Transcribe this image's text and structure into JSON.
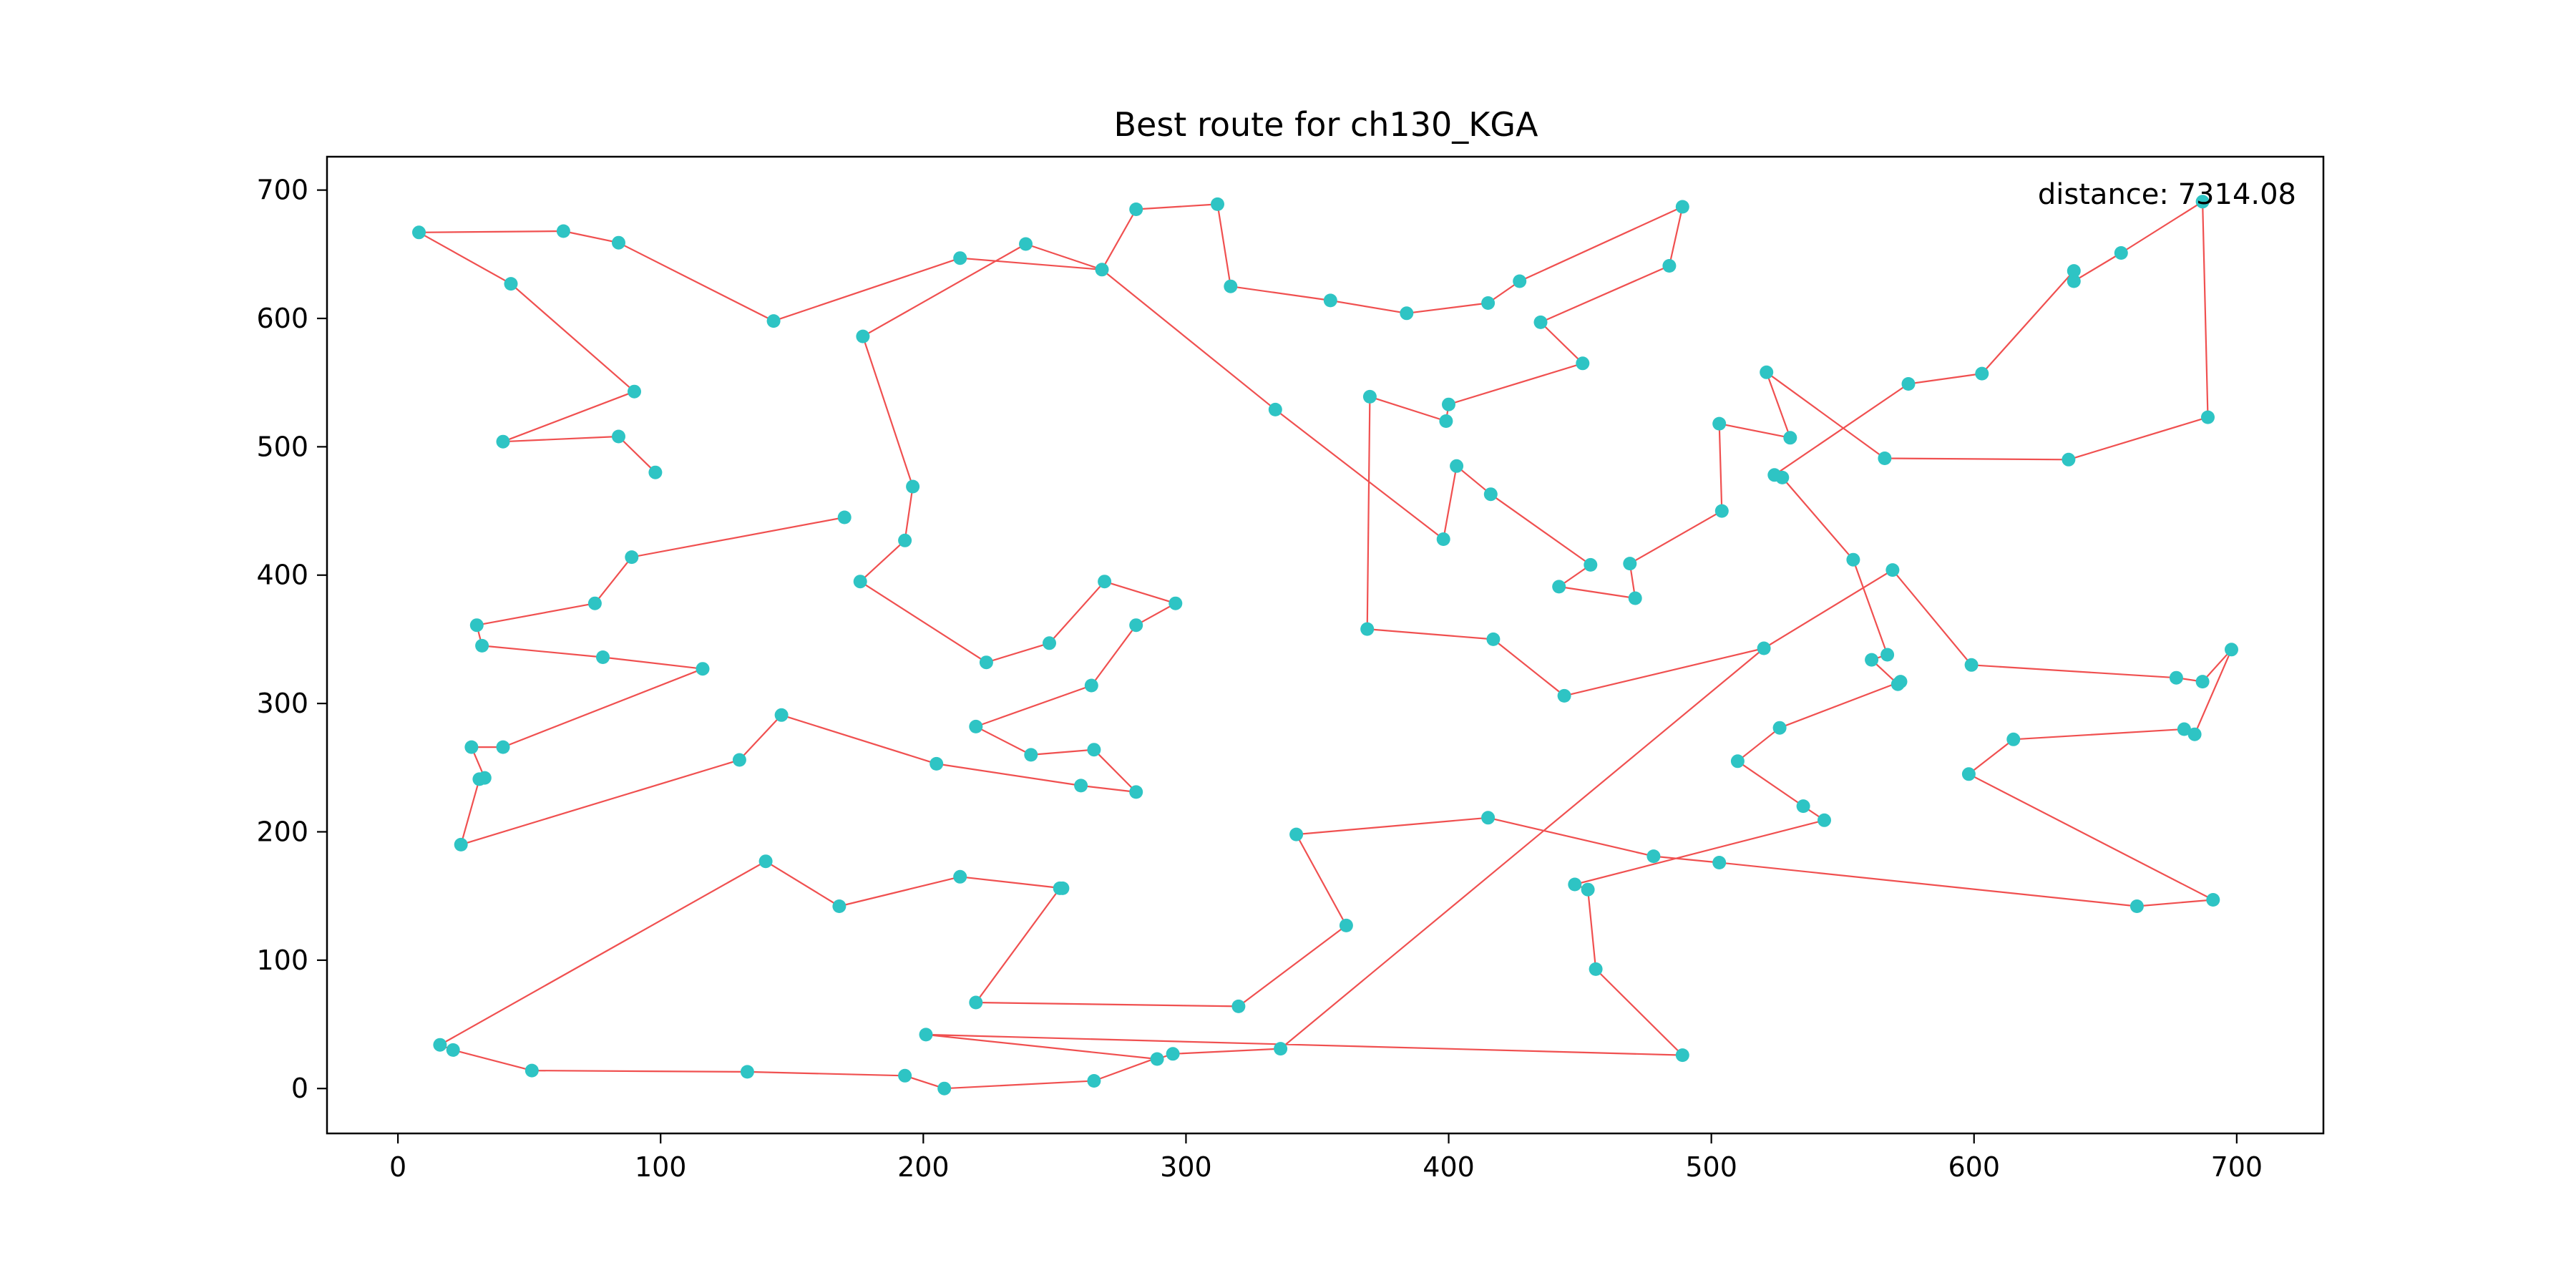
{
  "chart_data": {
    "type": "scatter",
    "title": "Best route for ch130_KGA",
    "xlabel": "",
    "ylabel": "",
    "xlim": [
      -27,
      733
    ],
    "ylim": [
      -35,
      726
    ],
    "x_ticks": [
      0,
      100,
      200,
      300,
      400,
      500,
      600,
      700
    ],
    "y_ticks": [
      0,
      100,
      200,
      300,
      400,
      500,
      600,
      700
    ],
    "grid": false,
    "annotation": "distance: 7314.08",
    "colors": {
      "points": "#2ec4c4",
      "route": "#f05050",
      "axes": "#000000"
    },
    "route": [
      [
        8,
        667
      ],
      [
        63,
        668
      ],
      [
        84,
        659
      ],
      [
        143,
        598
      ],
      [
        214,
        647
      ],
      [
        268,
        638
      ],
      [
        334,
        529
      ],
      [
        398,
        428
      ],
      [
        403,
        485
      ],
      [
        416,
        463
      ],
      [
        454,
        408
      ],
      [
        442,
        391
      ],
      [
        471,
        382
      ],
      [
        469,
        409
      ],
      [
        504,
        450
      ],
      [
        503,
        518
      ],
      [
        530,
        507
      ],
      [
        521,
        558
      ],
      [
        566,
        491
      ],
      [
        636,
        490
      ],
      [
        689,
        523
      ],
      [
        687,
        691
      ],
      [
        656,
        651
      ],
      [
        638,
        629
      ],
      [
        638,
        637
      ],
      [
        603,
        557
      ],
      [
        575,
        549
      ],
      [
        524,
        478
      ],
      [
        527,
        476
      ],
      [
        554,
        412
      ],
      [
        567,
        338
      ],
      [
        561,
        334
      ],
      [
        571,
        315
      ],
      [
        572,
        317
      ],
      [
        526,
        281
      ],
      [
        510,
        255
      ],
      [
        535,
        220
      ],
      [
        543,
        209
      ],
      [
        448,
        159
      ],
      [
        453,
        155
      ],
      [
        456,
        93
      ],
      [
        489,
        26
      ],
      [
        201,
        42
      ],
      [
        289,
        23
      ],
      [
        295,
        27
      ],
      [
        336,
        31
      ],
      [
        520,
        343
      ],
      [
        569,
        404
      ],
      [
        599,
        330
      ],
      [
        677,
        320
      ],
      [
        687,
        317
      ],
      [
        698,
        342
      ],
      [
        684,
        276
      ],
      [
        680,
        280
      ],
      [
        615,
        272
      ],
      [
        598,
        245
      ],
      [
        691,
        147
      ],
      [
        662,
        142
      ],
      [
        503,
        176
      ],
      [
        478,
        181
      ],
      [
        415,
        211
      ],
      [
        342,
        198
      ],
      [
        361,
        127
      ],
      [
        320,
        64
      ],
      [
        220,
        67
      ],
      [
        252,
        156
      ],
      [
        253,
        156
      ],
      [
        214,
        165
      ],
      [
        168,
        142
      ],
      [
        140,
        177
      ],
      [
        16,
        34
      ],
      [
        21,
        30
      ],
      [
        51,
        14
      ],
      [
        133,
        13
      ],
      [
        193,
        10
      ],
      [
        208,
        0
      ],
      [
        265,
        6
      ],
      [
        289,
        24
      ],
      [
        201,
        43
      ],
      [
        208,
        0
      ],
      [
        265,
        6
      ],
      [
        281,
        231
      ],
      [
        265,
        264
      ],
      [
        241,
        260
      ],
      [
        220,
        282
      ],
      [
        264,
        314
      ],
      [
        281,
        361
      ],
      [
        296,
        378
      ],
      [
        269,
        395
      ],
      [
        248,
        347
      ],
      [
        224,
        332
      ],
      [
        176,
        395
      ],
      [
        193,
        427
      ],
      [
        196,
        469
      ],
      [
        177,
        586
      ],
      [
        239,
        658
      ],
      [
        281,
        685
      ],
      [
        312,
        689
      ],
      [
        317,
        625
      ],
      [
        355,
        614
      ],
      [
        384,
        604
      ],
      [
        415,
        612
      ],
      [
        427,
        629
      ],
      [
        489,
        687
      ],
      [
        484,
        641
      ],
      [
        435,
        597
      ],
      [
        451,
        565
      ],
      [
        400,
        533
      ],
      [
        399,
        520
      ],
      [
        370,
        539
      ],
      [
        369,
        358
      ],
      [
        417,
        350
      ],
      [
        444,
        306
      ],
      [
        520,
        343
      ]
    ],
    "route_display": [
      [
        8,
        667
      ],
      [
        63,
        668
      ],
      [
        84,
        659
      ],
      [
        143,
        598
      ],
      [
        214,
        647
      ],
      [
        268,
        638
      ],
      [
        334,
        529
      ],
      [
        398,
        428
      ],
      [
        403,
        485
      ],
      [
        416,
        463
      ],
      [
        454,
        408
      ],
      [
        442,
        391
      ],
      [
        471,
        382
      ],
      [
        469,
        409
      ],
      [
        504,
        450
      ],
      [
        503,
        518
      ],
      [
        530,
        507
      ],
      [
        521,
        558
      ],
      [
        566,
        491
      ],
      [
        636,
        490
      ],
      [
        689,
        523
      ],
      [
        687,
        691
      ],
      [
        656,
        651
      ],
      [
        638,
        629
      ],
      [
        638,
        637
      ],
      [
        603,
        557
      ],
      [
        575,
        549
      ],
      [
        524,
        478
      ],
      [
        527,
        476
      ],
      [
        554,
        412
      ],
      [
        567,
        338
      ],
      [
        561,
        334
      ],
      [
        571,
        315
      ],
      [
        572,
        317
      ],
      [
        526,
        281
      ],
      [
        510,
        255
      ],
      [
        535,
        220
      ],
      [
        543,
        209
      ],
      [
        448,
        159
      ],
      [
        453,
        155
      ],
      [
        456,
        93
      ],
      [
        489,
        26
      ],
      [
        201,
        42
      ],
      [
        289,
        23
      ],
      [
        295,
        27
      ],
      [
        336,
        31
      ],
      [
        520,
        343
      ],
      [
        569,
        404
      ],
      [
        599,
        330
      ],
      [
        677,
        320
      ],
      [
        687,
        317
      ],
      [
        698,
        342
      ],
      [
        684,
        276
      ],
      [
        680,
        280
      ],
      [
        615,
        272
      ],
      [
        598,
        245
      ],
      [
        691,
        147
      ],
      [
        662,
        142
      ],
      [
        503,
        176
      ],
      [
        478,
        181
      ],
      [
        415,
        211
      ],
      [
        342,
        198
      ],
      [
        361,
        127
      ],
      [
        320,
        64
      ],
      [
        220,
        67
      ],
      [
        252,
        156
      ],
      [
        253,
        156
      ],
      [
        214,
        165
      ],
      [
        168,
        142
      ],
      [
        140,
        177
      ],
      [
        16,
        34
      ],
      [
        21,
        30
      ],
      [
        51,
        14
      ],
      [
        133,
        13
      ],
      [
        193,
        10
      ],
      [
        208,
        0
      ],
      [
        265,
        6
      ],
      [
        289,
        24
      ]
    ],
    "points": [
      [
        8,
        667
      ],
      [
        63,
        668
      ],
      [
        84,
        659
      ],
      [
        43,
        627
      ],
      [
        143,
        598
      ],
      [
        214,
        647
      ],
      [
        239,
        658
      ],
      [
        268,
        638
      ],
      [
        281,
        685
      ],
      [
        312,
        689
      ],
      [
        317,
        625
      ],
      [
        355,
        614
      ],
      [
        384,
        604
      ],
      [
        415,
        612
      ],
      [
        427,
        629
      ],
      [
        489,
        687
      ],
      [
        484,
        641
      ],
      [
        435,
        597
      ],
      [
        451,
        565
      ],
      [
        400,
        533
      ],
      [
        399,
        520
      ],
      [
        370,
        539
      ],
      [
        334,
        529
      ],
      [
        177,
        586
      ],
      [
        196,
        469
      ],
      [
        193,
        427
      ],
      [
        176,
        395
      ],
      [
        224,
        332
      ],
      [
        248,
        347
      ],
      [
        269,
        395
      ],
      [
        296,
        378
      ],
      [
        281,
        361
      ],
      [
        264,
        314
      ],
      [
        220,
        282
      ],
      [
        241,
        260
      ],
      [
        265,
        264
      ],
      [
        281,
        231
      ],
      [
        260,
        236
      ],
      [
        205,
        253
      ],
      [
        146,
        291
      ],
      [
        130,
        256
      ],
      [
        24,
        190
      ],
      [
        31,
        241
      ],
      [
        33,
        242
      ],
      [
        28,
        266
      ],
      [
        40,
        266
      ],
      [
        116,
        327
      ],
      [
        78,
        336
      ],
      [
        32,
        345
      ],
      [
        30,
        361
      ],
      [
        75,
        378
      ],
      [
        89,
        414
      ],
      [
        170,
        445
      ],
      [
        90,
        543
      ],
      [
        40,
        504
      ],
      [
        84,
        508
      ],
      [
        98,
        480
      ],
      [
        398,
        428
      ],
      [
        403,
        485
      ],
      [
        416,
        463
      ],
      [
        454,
        408
      ],
      [
        442,
        391
      ],
      [
        471,
        382
      ],
      [
        469,
        409
      ],
      [
        504,
        450
      ],
      [
        503,
        518
      ],
      [
        530,
        507
      ],
      [
        521,
        558
      ],
      [
        566,
        491
      ],
      [
        636,
        490
      ],
      [
        689,
        523
      ],
      [
        687,
        691
      ],
      [
        656,
        651
      ],
      [
        638,
        629
      ],
      [
        638,
        637
      ],
      [
        603,
        557
      ],
      [
        575,
        549
      ],
      [
        524,
        478
      ],
      [
        527,
        476
      ],
      [
        554,
        412
      ],
      [
        567,
        338
      ],
      [
        561,
        334
      ],
      [
        571,
        315
      ],
      [
        572,
        317
      ],
      [
        526,
        281
      ],
      [
        510,
        255
      ],
      [
        535,
        220
      ],
      [
        543,
        209
      ],
      [
        448,
        159
      ],
      [
        453,
        155
      ],
      [
        456,
        93
      ],
      [
        489,
        26
      ],
      [
        201,
        42
      ],
      [
        289,
        23
      ],
      [
        295,
        27
      ],
      [
        336,
        31
      ],
      [
        520,
        343
      ],
      [
        569,
        404
      ],
      [
        599,
        330
      ],
      [
        677,
        320
      ],
      [
        687,
        317
      ],
      [
        698,
        342
      ],
      [
        684,
        276
      ],
      [
        680,
        280
      ],
      [
        615,
        272
      ],
      [
        598,
        245
      ],
      [
        691,
        147
      ],
      [
        662,
        142
      ],
      [
        503,
        176
      ],
      [
        478,
        181
      ],
      [
        415,
        211
      ],
      [
        342,
        198
      ],
      [
        361,
        127
      ],
      [
        320,
        64
      ],
      [
        220,
        67
      ],
      [
        252,
        156
      ],
      [
        253,
        156
      ],
      [
        214,
        165
      ],
      [
        168,
        142
      ],
      [
        140,
        177
      ],
      [
        16,
        34
      ],
      [
        21,
        30
      ],
      [
        51,
        14
      ],
      [
        133,
        13
      ],
      [
        193,
        10
      ],
      [
        208,
        0
      ],
      [
        265,
        6
      ],
      [
        369,
        358
      ],
      [
        417,
        350
      ],
      [
        444,
        306
      ]
    ],
    "extra_segments": [
      [
        [
          8,
          667
        ],
        [
          43,
          627
        ],
        [
          90,
          543
        ],
        [
          40,
          504
        ],
        [
          84,
          508
        ],
        [
          98,
          480
        ]
      ],
      [
        [
          268,
          638
        ],
        [
          239,
          658
        ],
        [
          177,
          586
        ],
        [
          196,
          469
        ],
        [
          193,
          427
        ],
        [
          176,
          395
        ],
        [
          224,
          332
        ],
        [
          248,
          347
        ],
        [
          269,
          395
        ],
        [
          296,
          378
        ],
        [
          281,
          361
        ],
        [
          264,
          314
        ],
        [
          220,
          282
        ],
        [
          241,
          260
        ],
        [
          265,
          264
        ],
        [
          281,
          231
        ],
        [
          260,
          236
        ],
        [
          205,
          253
        ],
        [
          146,
          291
        ],
        [
          130,
          256
        ],
        [
          24,
          190
        ],
        [
          31,
          241
        ],
        [
          33,
          242
        ],
        [
          28,
          266
        ],
        [
          40,
          266
        ],
        [
          116,
          327
        ],
        [
          78,
          336
        ],
        [
          32,
          345
        ],
        [
          30,
          361
        ],
        [
          75,
          378
        ],
        [
          89,
          414
        ],
        [
          170,
          445
        ]
      ],
      [
        [
          268,
          638
        ],
        [
          281,
          685
        ],
        [
          312,
          689
        ],
        [
          317,
          625
        ],
        [
          355,
          614
        ],
        [
          384,
          604
        ],
        [
          415,
          612
        ],
        [
          427,
          629
        ],
        [
          489,
          687
        ],
        [
          484,
          641
        ],
        [
          435,
          597
        ],
        [
          451,
          565
        ],
        [
          400,
          533
        ],
        [
          399,
          520
        ],
        [
          370,
          539
        ],
        [
          369,
          358
        ],
        [
          417,
          350
        ],
        [
          444,
          306
        ],
        [
          520,
          343
        ]
      ]
    ]
  }
}
